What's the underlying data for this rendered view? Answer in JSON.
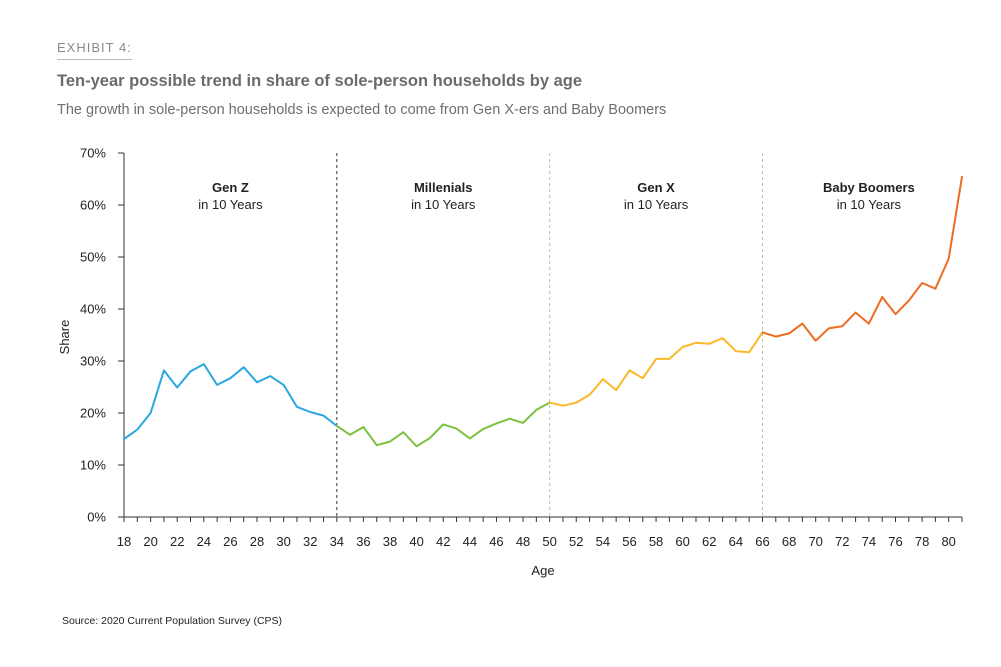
{
  "header": {
    "exhibit": "EXHIBIT 4:",
    "title": "Ten-year possible trend in share of sole-person households by age",
    "subtitle": "The growth in sole-person households is expected to come from Gen X-ers and Baby Boomers"
  },
  "source": "Source: 2020 Current Population Survey (CPS)",
  "colors": {
    "genz": "#29a8df",
    "millenials": "#7bc142",
    "genx": "#fbb82b",
    "boomers": "#ee6c22",
    "axis": "#333333",
    "divider": "#bbbbbb",
    "divider_dark": "#333333"
  },
  "chart_data": {
    "type": "line",
    "title": "Ten-year possible trend in share of sole-person households by age",
    "xlabel": "Age",
    "ylabel": "Share",
    "xlim": [
      18,
      81
    ],
    "ylim": [
      0,
      70
    ],
    "yticks": [
      0,
      10,
      20,
      30,
      40,
      50,
      60,
      70
    ],
    "ytick_labels": [
      "0%",
      "10%",
      "20%",
      "30%",
      "40%",
      "50%",
      "60%",
      "70%"
    ],
    "xticks": [
      18,
      20,
      22,
      24,
      26,
      28,
      30,
      32,
      34,
      36,
      38,
      40,
      42,
      44,
      46,
      48,
      50,
      52,
      54,
      56,
      58,
      60,
      62,
      64,
      66,
      68,
      70,
      72,
      74,
      76,
      78,
      80
    ],
    "xtick_labels": [
      "18",
      "20",
      "22",
      "24",
      "26",
      "28",
      "30",
      "32",
      "34",
      "36",
      "38",
      "40",
      "42",
      "44",
      "46",
      "48",
      "50",
      "52",
      "54",
      "56",
      "58",
      "60",
      "62",
      "64",
      "66",
      "68",
      "70",
      "72",
      "74",
      "76",
      "78",
      "80"
    ],
    "grid": false,
    "dividers": [
      34,
      50,
      66
    ],
    "generations": [
      {
        "name": "Gen Z",
        "sub": "in 10 Years",
        "center": 26
      },
      {
        "name": "Millenials",
        "sub": "in 10 Years",
        "center": 42
      },
      {
        "name": "Gen X",
        "sub": "in 10 Years",
        "center": 58
      },
      {
        "name": "Baby Boomers",
        "sub": "in 10 Years",
        "center": 74
      }
    ],
    "series": [
      {
        "name": "Gen Z",
        "color_key": "genz",
        "x": [
          18,
          19,
          20,
          21,
          22,
          23,
          24,
          25,
          26,
          27,
          28,
          29,
          30,
          31,
          32,
          33,
          34
        ],
        "values": [
          15.0,
          16.8,
          20.0,
          28.2,
          24.9,
          28.0,
          29.4,
          25.4,
          26.7,
          28.8,
          25.9,
          27.1,
          25.4,
          21.2,
          20.2,
          19.5,
          17.5
        ]
      },
      {
        "name": "Millenials",
        "color_key": "millenials",
        "x": [
          34,
          35,
          36,
          37,
          38,
          39,
          40,
          41,
          42,
          43,
          44,
          45,
          46,
          47,
          48,
          49,
          50
        ],
        "values": [
          17.5,
          15.8,
          17.3,
          13.8,
          14.5,
          16.3,
          13.6,
          15.2,
          17.8,
          17.0,
          15.1,
          16.9,
          18.0,
          18.9,
          18.1,
          20.6,
          22.0
        ]
      },
      {
        "name": "Gen X",
        "color_key": "genx",
        "x": [
          50,
          51,
          52,
          53,
          54,
          55,
          56,
          57,
          58,
          59,
          60,
          61,
          62,
          63,
          64,
          65,
          66
        ],
        "values": [
          22.0,
          21.4,
          22.0,
          23.5,
          26.5,
          24.4,
          28.2,
          26.7,
          30.4,
          30.4,
          32.7,
          33.5,
          33.3,
          34.4,
          31.9,
          31.7,
          35.5
        ]
      },
      {
        "name": "Baby Boomers",
        "color_key": "boomers",
        "x": [
          66,
          67,
          68,
          69,
          70,
          71,
          72,
          73,
          74,
          75,
          76,
          77,
          78,
          79,
          80,
          81
        ],
        "values": [
          35.5,
          34.7,
          35.3,
          37.2,
          33.9,
          36.3,
          36.7,
          39.3,
          37.2,
          42.3,
          39.0,
          41.6,
          45.0,
          43.9,
          49.7,
          65.4
        ]
      }
    ]
  }
}
